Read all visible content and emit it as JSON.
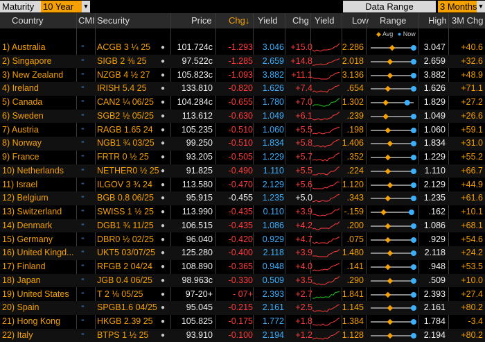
{
  "topbar": {
    "maturity_label": "Maturity",
    "maturity_value": "10 Year",
    "dropdown_arrow": "▼",
    "data_range_label": "Data Range",
    "range_value": "3 Months",
    "range_arrow": "▼"
  },
  "headers": {
    "country": "Country",
    "cmi": "CMI",
    "security": "Security",
    "price": "Price",
    "chg": "Chg↓",
    "yield": "Yield",
    "ychg": "Chg",
    "yspark": "Yield",
    "low": "Low",
    "range": "Range",
    "high": "High",
    "m3chg": "3M Chg"
  },
  "legend": {
    "avg": "Avg",
    "now": "Now"
  },
  "colors": {
    "orange": "#f4a000",
    "blue": "#3ab0ff",
    "red": "#ff3b3b",
    "green": "#22cc22"
  },
  "rows": [
    {
      "country": "1) Australia",
      "security": "ACGB 3 ¼ 25",
      "price": "101.724c",
      "chg": "-1.293",
      "yield": "3.046",
      "ychg": "+15.0",
      "low": "2.286",
      "high": "3.047",
      "m3": "+40.6",
      "avg": 0.5,
      "now": 1.0,
      "chgcolor": "red",
      "ychgcolor": "red"
    },
    {
      "country": "2) Singapore",
      "security": "SIGB 2 ⅜ 25",
      "price": "97.522c",
      "chg": "-1.285",
      "yield": "2.659",
      "ychg": "+14.8",
      "low": "2.018",
      "high": "2.659",
      "m3": "+32.6",
      "avg": 0.45,
      "now": 1.0,
      "chgcolor": "red",
      "ychgcolor": "red"
    },
    {
      "country": "3) New Zealand",
      "security": "NZGB 4 ½ 27",
      "price": "105.823c",
      "chg": "-1.093",
      "yield": "3.882",
      "ychg": "+11.1",
      "low": "3.136",
      "high": "3.882",
      "m3": "+48.9",
      "avg": 0.45,
      "now": 1.0,
      "chgcolor": "red",
      "ychgcolor": "red"
    },
    {
      "country": "4) Ireland",
      "security": "IRISH 5.4 25",
      "price": "133.810",
      "chg": "-0.820",
      "yield": "1.626",
      "ychg": "+7.4",
      "low": ".654",
      "high": "1.626",
      "m3": "+71.1",
      "avg": 0.4,
      "now": 1.0,
      "chgcolor": "red",
      "ychgcolor": "red"
    },
    {
      "country": "5) Canada",
      "security": "CAN2 ¼ 06/25",
      "price": "104.284c",
      "chg": "-0.655",
      "yield": "1.780",
      "ychg": "+7.0",
      "low": "1.302",
      "high": "1.829",
      "m3": "+27.2",
      "avg": 0.35,
      "now": 0.85,
      "chgcolor": "red",
      "ychgcolor": "red"
    },
    {
      "country": "6) Sweden",
      "security": "SGB2 ½ 05/25",
      "price": "113.612",
      "chg": "-0.630",
      "yield": "1.049",
      "ychg": "+6.1",
      "low": ".239",
      "high": "1.049",
      "m3": "+26.6",
      "avg": 0.35,
      "now": 1.0,
      "chgcolor": "red",
      "ychgcolor": "red"
    },
    {
      "country": "7) Austria",
      "security": "RAGB 1.65 24",
      "price": "105.235",
      "chg": "-0.510",
      "yield": "1.060",
      "ychg": "+5.5",
      "low": ".198",
      "high": "1.060",
      "m3": "+59.1",
      "avg": 0.4,
      "now": 1.0,
      "chgcolor": "red",
      "ychgcolor": "red"
    },
    {
      "country": "8) Norway",
      "security": "NGB1 ¾ 03/25",
      "price": "99.250",
      "chg": "-0.510",
      "yield": "1.834",
      "ychg": "+5.8",
      "low": "1.406",
      "high": "1.834",
      "m3": "+31.0",
      "avg": 0.45,
      "now": 1.0,
      "chgcolor": "red",
      "ychgcolor": "red"
    },
    {
      "country": "9) France",
      "security": "FRTR 0 ½ 25",
      "price": "93.205",
      "chg": "-0.505",
      "yield": "1.229",
      "ychg": "+5.7",
      "low": ".352",
      "high": "1.229",
      "m3": "+55.2",
      "avg": 0.4,
      "now": 1.0,
      "chgcolor": "red",
      "ychgcolor": "red"
    },
    {
      "country": "10) Netherlands",
      "security": "NETHER0 ½ 25",
      "price": "91.825",
      "chg": "-0.490",
      "yield": "1.110",
      "ychg": "+5.5",
      "low": ".224",
      "high": "1.110",
      "m3": "+66.7",
      "avg": 0.4,
      "now": 1.0,
      "chgcolor": "red",
      "ychgcolor": "red"
    },
    {
      "country": "11) Israel",
      "security": "ILGOV 3 ¾ 24",
      "price": "113.580",
      "chg": "-0.470",
      "yield": "2.129",
      "ychg": "+5.6",
      "low": "1.120",
      "high": "2.129",
      "m3": "+44.9",
      "avg": 0.45,
      "now": 1.0,
      "chgcolor": "red",
      "ychgcolor": "red"
    },
    {
      "country": "12) Belgium",
      "security": "BGB 0.8 06/25",
      "price": "95.915",
      "chg": "-0.455",
      "yield": "1.235",
      "ychg": "+5.0",
      "low": ".343",
      "high": "1.235",
      "m3": "+61.6",
      "avg": 0.4,
      "now": 1.0,
      "chgcolor": "white",
      "ychgcolor": "white"
    },
    {
      "country": "13) Switzerland",
      "security": "SWISS 1 ½ 25",
      "price": "113.990",
      "chg": "-0.435",
      "yield": "0.110",
      "ychg": "+3.9",
      "low": "-.159",
      "high": ".162",
      "m3": "+10.1",
      "avg": 0.3,
      "now": 0.95,
      "chgcolor": "red",
      "ychgcolor": "red"
    },
    {
      "country": "14) Denmark",
      "security": "DGB1 ¾ 11/25",
      "price": "106.515",
      "chg": "-0.435",
      "yield": "1.086",
      "ychg": "+4.2",
      "low": ".200",
      "high": "1.086",
      "m3": "+68.1",
      "avg": 0.4,
      "now": 1.0,
      "chgcolor": "red",
      "ychgcolor": "red"
    },
    {
      "country": "15) Germany",
      "security": "DBR0 ½ 02/25",
      "price": "96.040",
      "chg": "-0.420",
      "yield": "0.929",
      "ychg": "+4.7",
      "low": ".075",
      "high": ".929",
      "m3": "+54.6",
      "avg": 0.4,
      "now": 1.0,
      "chgcolor": "red",
      "ychgcolor": "red"
    },
    {
      "country": "16) United Kingd...",
      "security": "UKT5 03/07/25",
      "price": "125.280",
      "chg": "-0.400",
      "yield": "2.118",
      "ychg": "+3.9",
      "low": "1.480",
      "high": "2.118",
      "m3": "+24.2",
      "avg": 0.45,
      "now": 1.0,
      "chgcolor": "red",
      "ychgcolor": "red"
    },
    {
      "country": "17) Finland",
      "security": "RFGB 2 04/24",
      "price": "108.890",
      "chg": "-0.365",
      "yield": "0.948",
      "ychg": "+4.0",
      "low": ".141",
      "high": ".948",
      "m3": "+53.5",
      "avg": 0.4,
      "now": 1.0,
      "chgcolor": "red",
      "ychgcolor": "red"
    },
    {
      "country": "18) Japan",
      "security": "JGB 0.4 06/25",
      "price": "98.963c",
      "chg": "-0.330",
      "yield": "0.509",
      "ychg": "+3.5",
      "low": ".290",
      "high": ".509",
      "m3": "+10.0",
      "avg": 0.45,
      "now": 1.0,
      "chgcolor": "red",
      "ychgcolor": "red"
    },
    {
      "country": "19) United States",
      "security": "T 2 ⅛ 05/25",
      "price": "97-20+",
      "chg": "- 07+",
      "yield": "2.393",
      "ychg": "+2.7",
      "low": "1.841",
      "high": "2.393",
      "m3": "+27.4",
      "avg": 0.4,
      "now": 1.0,
      "chgcolor": "red",
      "ychgcolor": "red"
    },
    {
      "country": "20) Spain",
      "security": "SPGB1.6 04/25",
      "price": "95.045",
      "chg": "-0.215",
      "yield": "2.161",
      "ychg": "+2.5",
      "low": "1.145",
      "high": "2.161",
      "m3": "+80.2",
      "avg": 0.45,
      "now": 1.0,
      "chgcolor": "red",
      "ychgcolor": "red"
    },
    {
      "country": "21) Hong Kong",
      "security": "HKGB 2.39 25",
      "price": "105.825",
      "chg": "-0.175",
      "yield": "1.772",
      "ychg": "+1.8",
      "low": "1.384",
      "high": "1.784",
      "m3": "-3.4",
      "avg": 0.45,
      "now": 1.0,
      "chgcolor": "red",
      "ychgcolor": "red"
    },
    {
      "country": "22) Italy",
      "security": "BTPS 1 ½ 25",
      "price": "93.910",
      "chg": "-0.100",
      "yield": "2.194",
      "ychg": "+1.2",
      "low": "1.128",
      "high": "2.194",
      "m3": "+80.2",
      "avg": 0.45,
      "now": 1.0,
      "chgcolor": "red",
      "ychgcolor": "red"
    }
  ]
}
